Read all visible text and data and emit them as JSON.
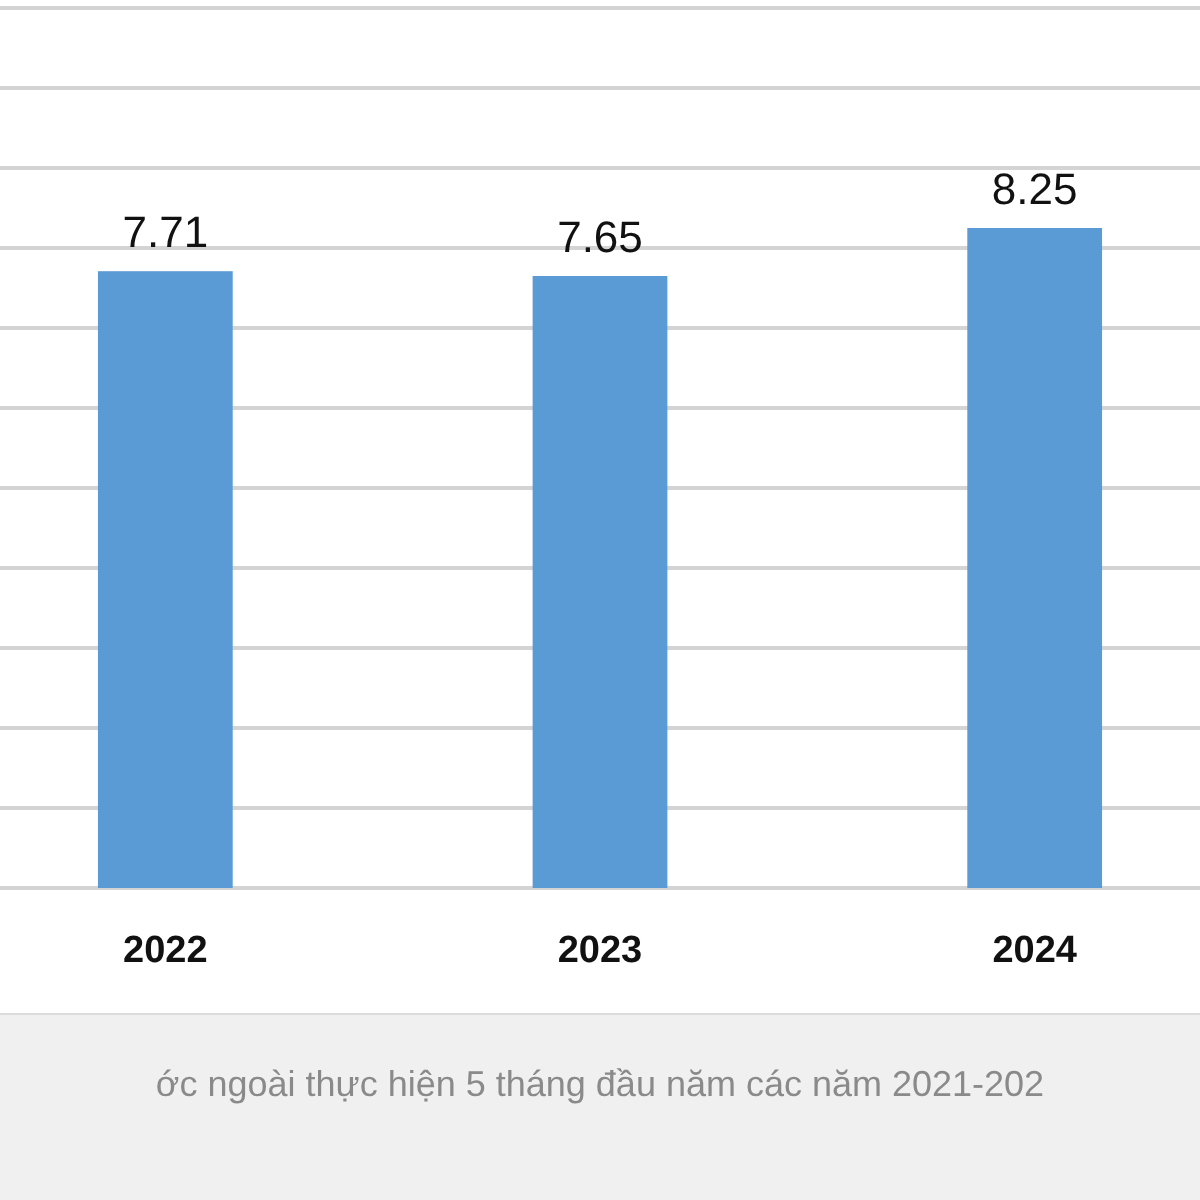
{
  "chart_data": {
    "type": "bar",
    "categories": [
      "2022",
      "2023",
      "2024"
    ],
    "values": [
      7.71,
      7.65,
      8.25
    ],
    "color": "#5b9bd5",
    "ylim": [
      0,
      11
    ],
    "yticks": [
      {
        "value": 0,
        "label": null
      },
      {
        "value": 1,
        "label": null
      },
      {
        "value": 2,
        "label": null
      },
      {
        "value": 3,
        "label": null
      },
      {
        "value": 4,
        "label": null
      },
      {
        "value": 5,
        "label": null
      },
      {
        "value": 6,
        "label": null
      },
      {
        "value": 7,
        "label": null
      },
      {
        "value": 8,
        "label": null
      },
      {
        "value": 9,
        "label": null
      },
      {
        "value": 10,
        "label": null
      },
      {
        "value": 11,
        "label": null
      }
    ],
    "grid": "y",
    "tick_labels": "x",
    "data_labels": true,
    "annotations": [
      "ớc ngoài thực hiện 5 tháng đầu năm các năm 2021-202"
    ]
  }
}
